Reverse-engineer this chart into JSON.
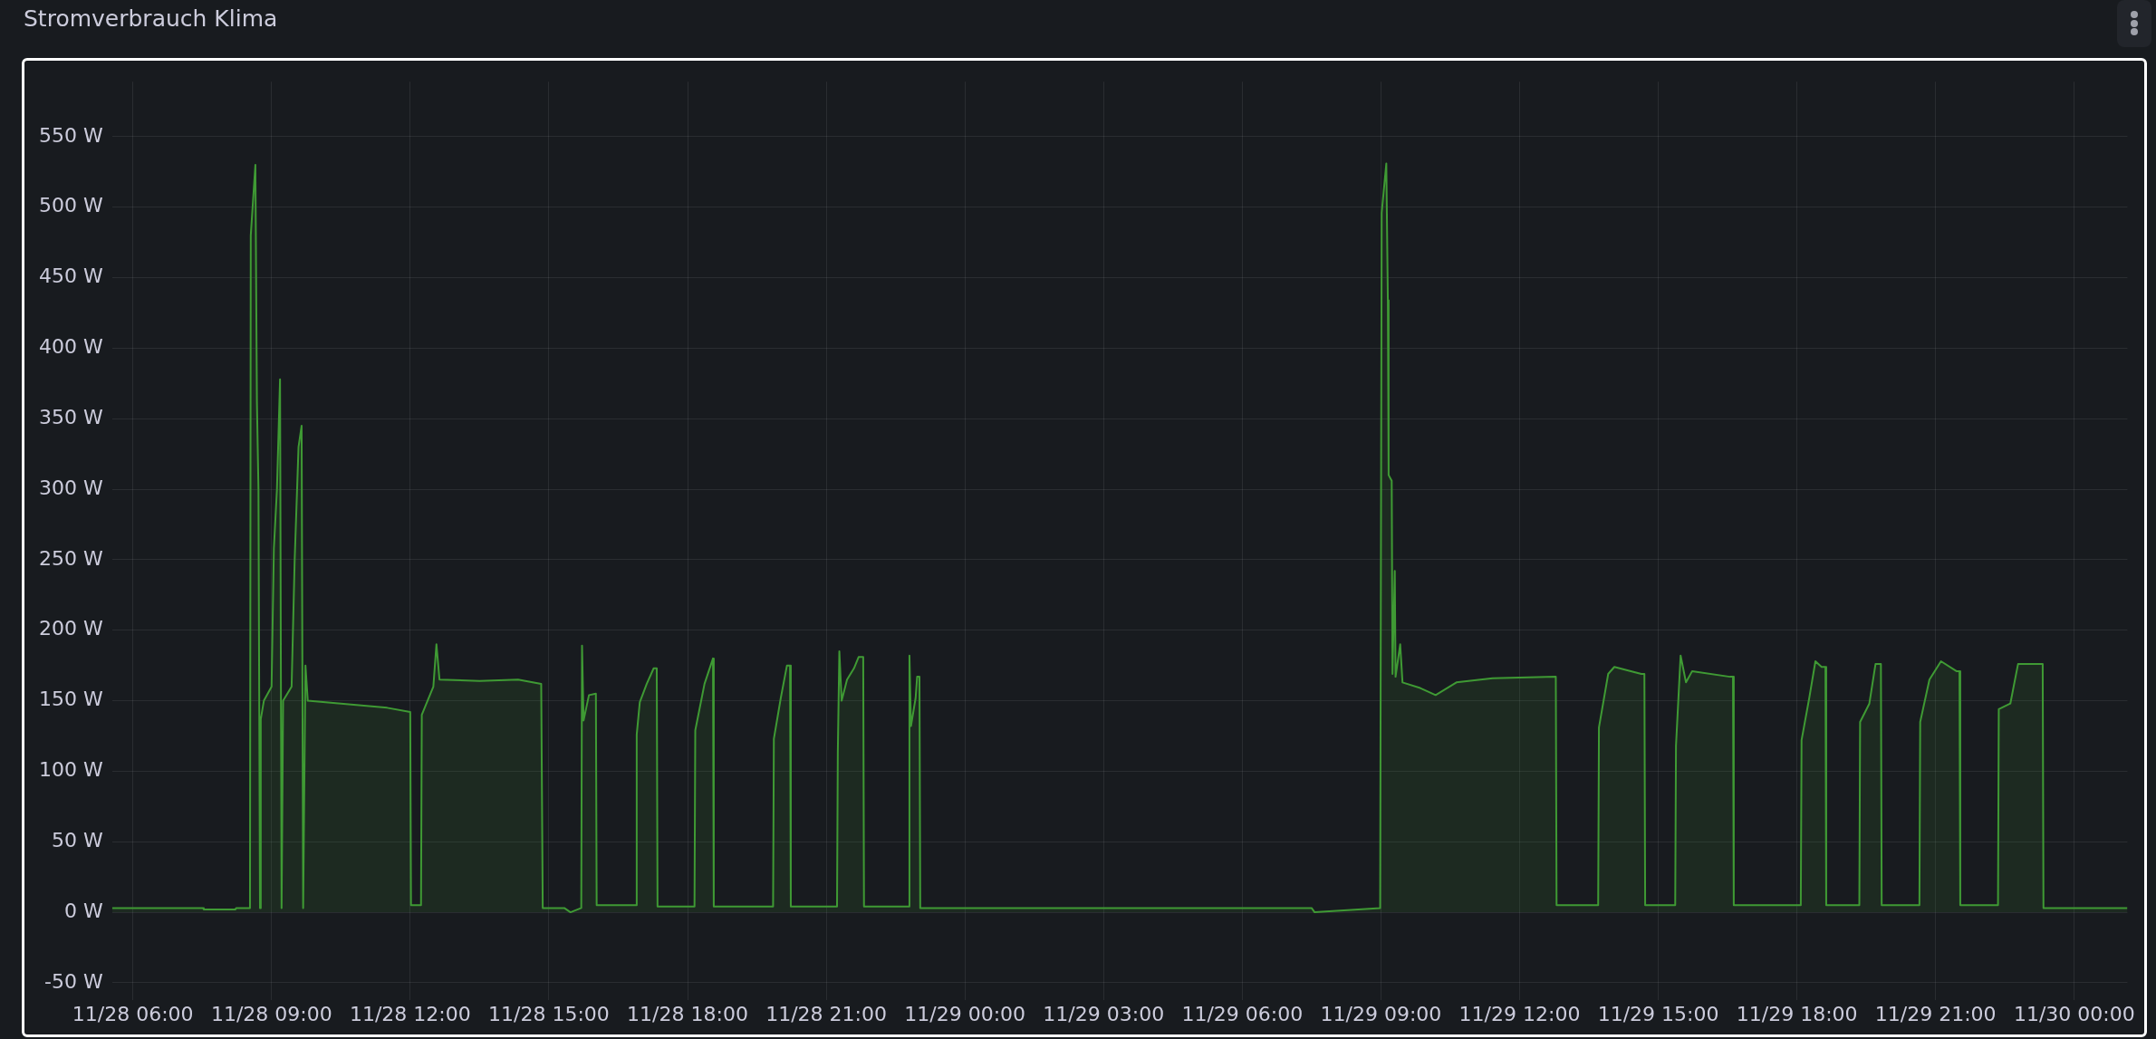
{
  "chart_data": {
    "type": "area",
    "title": "Stromverbrauch Klima",
    "grid": true,
    "legend": false,
    "marker": "none",
    "line_style": "solid",
    "xlim": [
      "--11-28T05:33",
      "--11-30T01:09"
    ],
    "xticks": [
      {
        "value": "--11-28T06:00",
        "label": "11/28 06:00"
      },
      {
        "value": "--11-28T09:00",
        "label": "11/28 09:00"
      },
      {
        "value": "--11-28T12:00",
        "label": "11/28 12:00"
      },
      {
        "value": "--11-28T15:00",
        "label": "11/28 15:00"
      },
      {
        "value": "--11-28T18:00",
        "label": "11/28 18:00"
      },
      {
        "value": "--11-28T21:00",
        "label": "11/28 21:00"
      },
      {
        "value": "--11-29T00:00",
        "label": "11/29 00:00"
      },
      {
        "value": "--11-29T03:00",
        "label": "11/29 03:00"
      },
      {
        "value": "--11-29T06:00",
        "label": "11/29 06:00"
      },
      {
        "value": "--11-29T09:00",
        "label": "11/29 09:00"
      },
      {
        "value": "--11-29T12:00",
        "label": "11/29 12:00"
      },
      {
        "value": "--11-29T15:00",
        "label": "11/29 15:00"
      },
      {
        "value": "--11-29T18:00",
        "label": "11/29 18:00"
      },
      {
        "value": "--11-29T21:00",
        "label": "11/29 21:00"
      },
      {
        "value": "--11-30T00:00",
        "label": "11/30 00:00"
      }
    ],
    "ylim": [
      -62,
      589
    ],
    "yticks": [
      {
        "value": -50,
        "label": "-50 W"
      },
      {
        "value": 0,
        "label": "0 W"
      },
      {
        "value": 50,
        "label": "50 W"
      },
      {
        "value": 100,
        "label": "100 W"
      },
      {
        "value": 150,
        "label": "150 W"
      },
      {
        "value": 200,
        "label": "200 W"
      },
      {
        "value": 250,
        "label": "250 W"
      },
      {
        "value": 300,
        "label": "300 W"
      },
      {
        "value": 350,
        "label": "350 W"
      },
      {
        "value": 400,
        "label": "400 W"
      },
      {
        "value": 450,
        "label": "450 W"
      },
      {
        "value": 500,
        "label": "500 W"
      },
      {
        "value": 550,
        "label": "550 W"
      }
    ],
    "x": [
      "--11-28T05:33",
      "--11-28T07:31",
      "--11-28T07:32",
      "--11-28T08:13",
      "--11-28T08:14",
      "--11-28T08:32",
      "--11-28T08:33",
      "--11-28T08:39",
      "--11-28T08:41",
      "--11-28T08:43",
      "--11-28T08:45",
      "--11-28T08:46",
      "--11-28T08:50",
      "--11-28T09:00",
      "--11-28T09:03",
      "--11-28T09:07",
      "--11-28T09:11",
      "--11-28T09:13",
      "--11-28T09:15",
      "--11-28T09:26",
      "--11-28T09:30",
      "--11-28T09:35",
      "--11-28T09:39",
      "--11-28T09:41",
      "--11-28T09:44",
      "--11-28T09:47",
      "--11-28T10:30",
      "--11-28T11:30",
      "--11-28T12:00",
      "--11-28T12:01",
      "--11-28T12:14",
      "--11-28T12:15",
      "--11-28T12:30",
      "--11-28T12:34",
      "--11-28T12:38",
      "--11-28T13:30",
      "--11-28T14:20",
      "--11-28T14:50",
      "--11-28T14:52",
      "--11-28T15:20",
      "--11-28T15:28",
      "--11-28T15:42",
      "--11-28T15:43",
      "--11-28T15:45",
      "--11-28T15:52",
      "--11-28T16:01",
      "--11-28T16:02",
      "--11-28T16:53",
      "--11-28T16:54",
      "--11-28T16:58",
      "--11-28T17:07",
      "--11-28T17:16",
      "--11-28T17:20",
      "--11-28T17:21",
      "--11-28T18:09",
      "--11-28T18:10",
      "--11-28T18:22",
      "--11-28T18:33",
      "--11-28T18:34",
      "--11-28T19:51",
      "--11-28T19:52",
      "--11-28T20:01",
      "--11-28T20:09",
      "--11-28T20:13",
      "--11-28T20:14",
      "--11-28T21:14",
      "--11-28T21:15",
      "--11-28T21:17",
      "--11-28T21:20",
      "--11-28T21:27",
      "--11-28T21:36",
      "--11-28T21:42",
      "--11-28T21:48",
      "--11-28T21:49",
      "--11-28T22:47",
      "--11-28T22:48",
      "--11-28T22:50",
      "--11-28T22:56",
      "--11-28T22:58",
      "--11-28T23:01",
      "--11-28T23:02",
      "--11-29T07:30",
      "--11-29T07:34",
      "--11-29T08:59",
      "--11-29T09:01",
      "--11-29T09:07",
      "--11-29T09:09",
      "--11-29T09:10",
      "--11-29T09:14",
      "--11-29T09:15",
      "--11-29T09:18",
      "--11-29T09:19",
      "--11-29T09:25",
      "--11-29T09:28",
      "--11-29T09:51",
      "--11-29T10:11",
      "--11-29T10:38",
      "--11-29T11:25",
      "--11-29T12:47",
      "--11-29T12:48",
      "--11-29T13:42",
      "--11-29T13:43",
      "--11-29T13:55",
      "--11-29T14:03",
      "--11-29T14:38",
      "--11-29T14:42",
      "--11-29T14:43",
      "--11-29T15:22",
      "--11-29T15:23",
      "--11-29T15:29",
      "--11-29T15:36",
      "--11-29T15:44",
      "--11-29T16:33",
      "--11-29T16:37",
      "--11-29T16:38",
      "--11-29T18:05",
      "--11-29T18:06",
      "--11-29T18:16",
      "--11-29T18:24",
      "--11-29T18:32",
      "--11-29T18:37",
      "--11-29T18:38",
      "--11-29T19:21",
      "--11-29T19:22",
      "--11-29T19:34",
      "--11-29T19:42",
      "--11-29T19:49",
      "--11-29T19:50",
      "--11-29T20:39",
      "--11-29T20:40",
      "--11-29T20:52",
      "--11-29T21:07",
      "--11-29T21:27",
      "--11-29T21:31",
      "--11-29T21:32",
      "--11-29T22:21",
      "--11-29T22:22",
      "--11-29T22:37",
      "--11-29T22:47",
      "--11-29T23:19",
      "--11-29T23:20",
      "--11-30T01:09"
    ],
    "series": [
      {
        "color": "#3f9a34",
        "values": [
          3,
          3,
          2,
          2,
          3,
          3,
          480,
          530,
          362,
          300,
          3,
          137,
          150,
          160,
          258,
          300,
          378,
          3,
          150,
          160,
          250,
          330,
          345,
          3,
          175,
          150,
          148,
          145,
          142,
          5,
          5,
          140,
          160,
          190,
          165,
          164,
          165,
          162,
          3,
          3,
          0,
          3,
          189,
          136,
          154,
          155,
          5,
          5,
          126,
          149,
          162,
          173,
          173,
          4,
          4,
          129,
          162,
          180,
          4,
          4,
          123,
          152,
          175,
          175,
          4,
          4,
          113,
          185,
          150,
          165,
          173,
          181,
          181,
          4,
          4,
          182,
          132,
          152,
          167,
          167,
          3,
          3,
          0,
          3,
          496,
          531,
          434,
          310,
          306,
          169,
          242,
          167,
          190,
          163,
          159,
          154,
          163,
          166,
          167,
          5,
          5,
          131,
          169,
          174,
          169,
          169,
          5,
          5,
          118,
          182,
          163,
          171,
          167,
          167,
          5,
          5,
          122,
          152,
          178,
          174,
          174,
          5,
          5,
          135,
          148,
          176,
          176,
          5,
          5,
          135,
          165,
          178,
          171,
          171,
          5,
          5,
          144,
          148,
          176,
          176,
          3,
          3
        ]
      }
    ]
  }
}
